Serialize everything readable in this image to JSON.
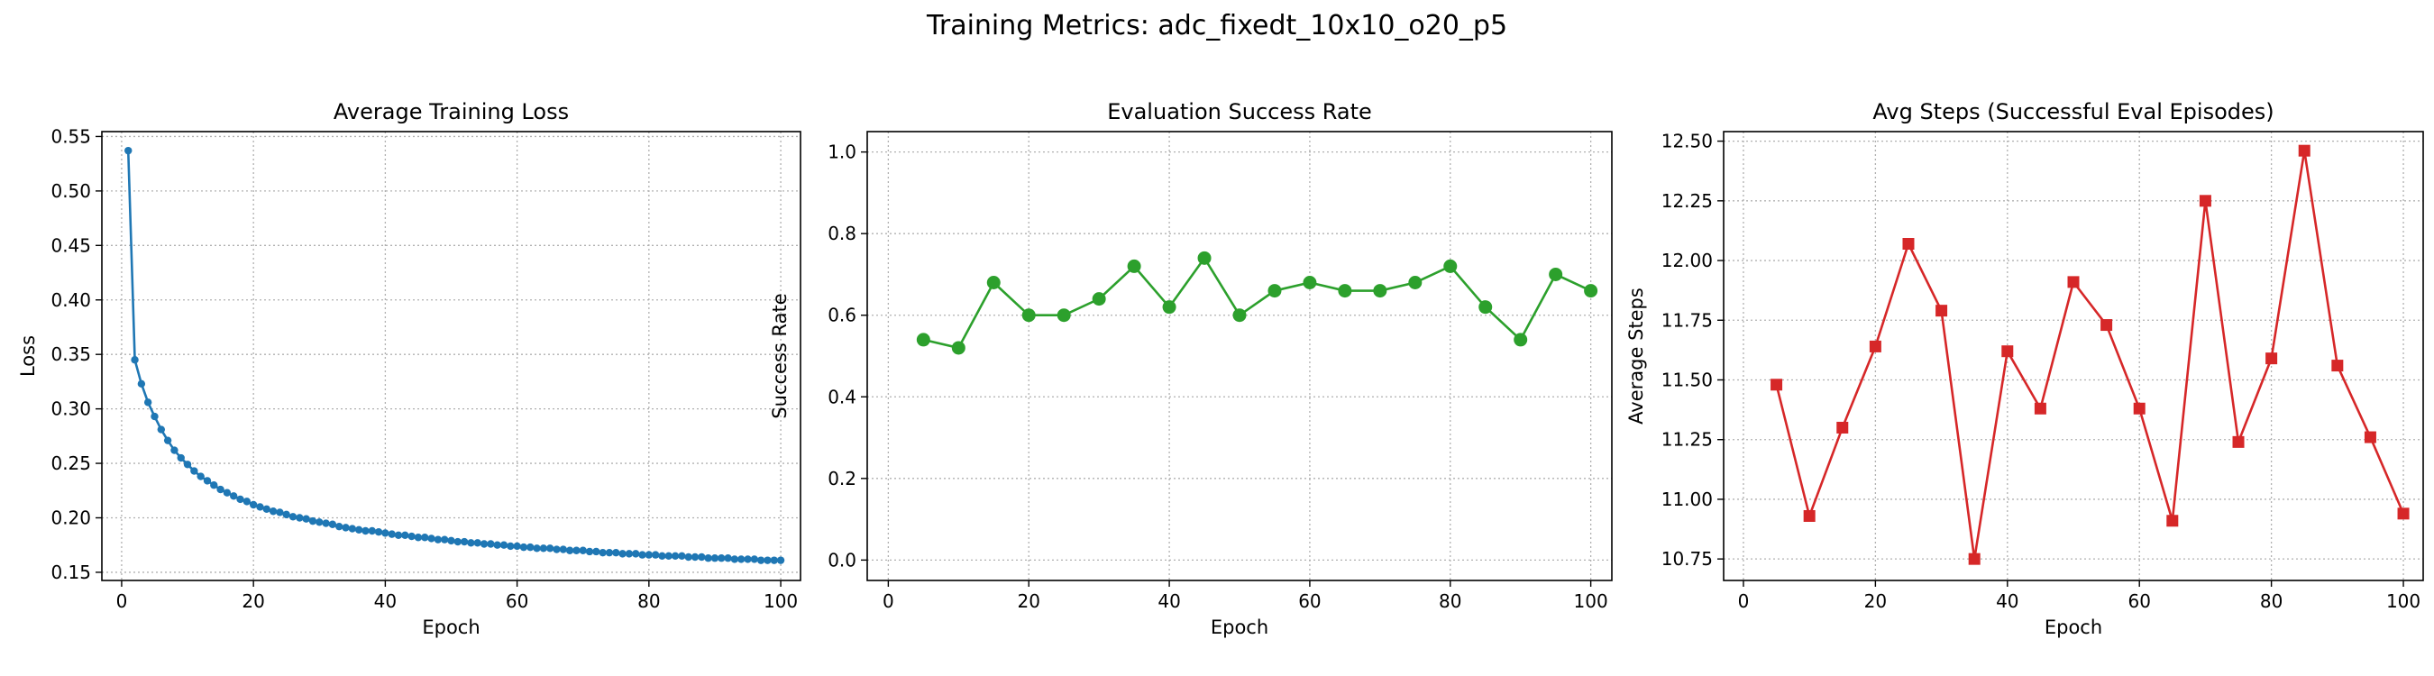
{
  "figure": {
    "title": "Training Metrics: adc_fixedt_10x10_o20_p5"
  },
  "chart_data": [
    {
      "type": "line",
      "title": "Average Training Loss",
      "xlabel": "Epoch",
      "ylabel": "Loss",
      "xlim": [
        -3,
        103
      ],
      "ylim": [
        0.1425,
        0.5545
      ],
      "xticks": [
        0,
        20,
        40,
        60,
        80,
        100
      ],
      "yticks": [
        0.15,
        0.2,
        0.25,
        0.3,
        0.35,
        0.4,
        0.45,
        0.5,
        0.55
      ],
      "ytick_labels": [
        "0.15",
        "0.20",
        "0.25",
        "0.30",
        "0.35",
        "0.40",
        "0.45",
        "0.50",
        "0.55"
      ],
      "grid": true,
      "color": "#1f77b4",
      "marker": "circle-small",
      "series": [
        {
          "x": [
            1,
            2,
            3,
            4,
            5,
            6,
            7,
            8,
            9,
            10,
            11,
            12,
            13,
            14,
            15,
            16,
            17,
            18,
            19,
            20,
            21,
            22,
            23,
            24,
            25,
            26,
            27,
            28,
            29,
            30,
            31,
            32,
            33,
            34,
            35,
            36,
            37,
            38,
            39,
            40,
            41,
            42,
            43,
            44,
            45,
            46,
            47,
            48,
            49,
            50,
            51,
            52,
            53,
            54,
            55,
            56,
            57,
            58,
            59,
            60,
            61,
            62,
            63,
            64,
            65,
            66,
            67,
            68,
            69,
            70,
            71,
            72,
            73,
            74,
            75,
            76,
            77,
            78,
            79,
            80,
            81,
            82,
            83,
            84,
            85,
            86,
            87,
            88,
            89,
            90,
            91,
            92,
            93,
            94,
            95,
            96,
            97,
            98,
            99,
            100
          ],
          "values": [
            0.537,
            0.345,
            0.323,
            0.306,
            0.293,
            0.281,
            0.271,
            0.262,
            0.255,
            0.249,
            0.243,
            0.238,
            0.234,
            0.23,
            0.226,
            0.223,
            0.22,
            0.217,
            0.215,
            0.212,
            0.21,
            0.208,
            0.206,
            0.205,
            0.203,
            0.201,
            0.2,
            0.199,
            0.197,
            0.196,
            0.195,
            0.194,
            0.192,
            0.191,
            0.19,
            0.189,
            0.188,
            0.188,
            0.187,
            0.186,
            0.185,
            0.184,
            0.184,
            0.183,
            0.182,
            0.182,
            0.181,
            0.18,
            0.18,
            0.179,
            0.178,
            0.178,
            0.177,
            0.177,
            0.176,
            0.176,
            0.175,
            0.175,
            0.174,
            0.174,
            0.173,
            0.173,
            0.172,
            0.172,
            0.172,
            0.171,
            0.171,
            0.17,
            0.17,
            0.17,
            0.169,
            0.169,
            0.168,
            0.168,
            0.168,
            0.167,
            0.167,
            0.167,
            0.166,
            0.166,
            0.166,
            0.165,
            0.165,
            0.165,
            0.165,
            0.164,
            0.164,
            0.164,
            0.163,
            0.163,
            0.163,
            0.163,
            0.162,
            0.162,
            0.162,
            0.162,
            0.161,
            0.161,
            0.161,
            0.161
          ]
        }
      ]
    },
    {
      "type": "line",
      "title": "Evaluation Success Rate",
      "xlabel": "Epoch",
      "ylabel": "Success Rate",
      "xlim": [
        -3,
        103
      ],
      "ylim": [
        -0.05,
        1.05
      ],
      "xticks": [
        0,
        20,
        40,
        60,
        80,
        100
      ],
      "yticks": [
        0,
        0.2,
        0.4,
        0.6,
        0.8,
        1
      ],
      "ytick_labels": [
        "0.0",
        "0.2",
        "0.4",
        "0.6",
        "0.8",
        "1.0"
      ],
      "grid": true,
      "color": "#2ca02c",
      "marker": "circle",
      "series": [
        {
          "x": [
            5,
            10,
            15,
            20,
            25,
            30,
            35,
            40,
            45,
            50,
            55,
            60,
            65,
            70,
            75,
            80,
            85,
            90,
            95,
            100
          ],
          "values": [
            0.54,
            0.52,
            0.68,
            0.6,
            0.6,
            0.64,
            0.72,
            0.62,
            0.74,
            0.6,
            0.66,
            0.68,
            0.66,
            0.66,
            0.68,
            0.72,
            0.62,
            0.54,
            0.7,
            0.66
          ]
        }
      ]
    },
    {
      "type": "line",
      "title": "Avg Steps (Successful Eval Episodes)",
      "xlabel": "Epoch",
      "ylabel": "Average Steps",
      "xlim": [
        -3,
        103
      ],
      "ylim": [
        10.66,
        12.54
      ],
      "xticks": [
        0,
        20,
        40,
        60,
        80,
        100
      ],
      "yticks": [
        10.75,
        11,
        11.25,
        11.5,
        11.75,
        12,
        12.25,
        12.5
      ],
      "ytick_labels": [
        "10.75",
        "11.00",
        "11.25",
        "11.50",
        "11.75",
        "12.00",
        "12.25",
        "12.50"
      ],
      "grid": true,
      "color": "#d62728",
      "marker": "square",
      "series": [
        {
          "x": [
            5,
            10,
            15,
            20,
            25,
            30,
            35,
            40,
            45,
            50,
            55,
            60,
            65,
            70,
            75,
            80,
            85,
            90,
            95,
            100
          ],
          "values": [
            11.48,
            10.93,
            11.3,
            11.64,
            12.07,
            11.79,
            10.75,
            11.62,
            11.38,
            11.91,
            11.73,
            11.38,
            10.91,
            12.25,
            11.24,
            11.59,
            12.46,
            11.56,
            11.26,
            10.94
          ]
        }
      ]
    }
  ]
}
